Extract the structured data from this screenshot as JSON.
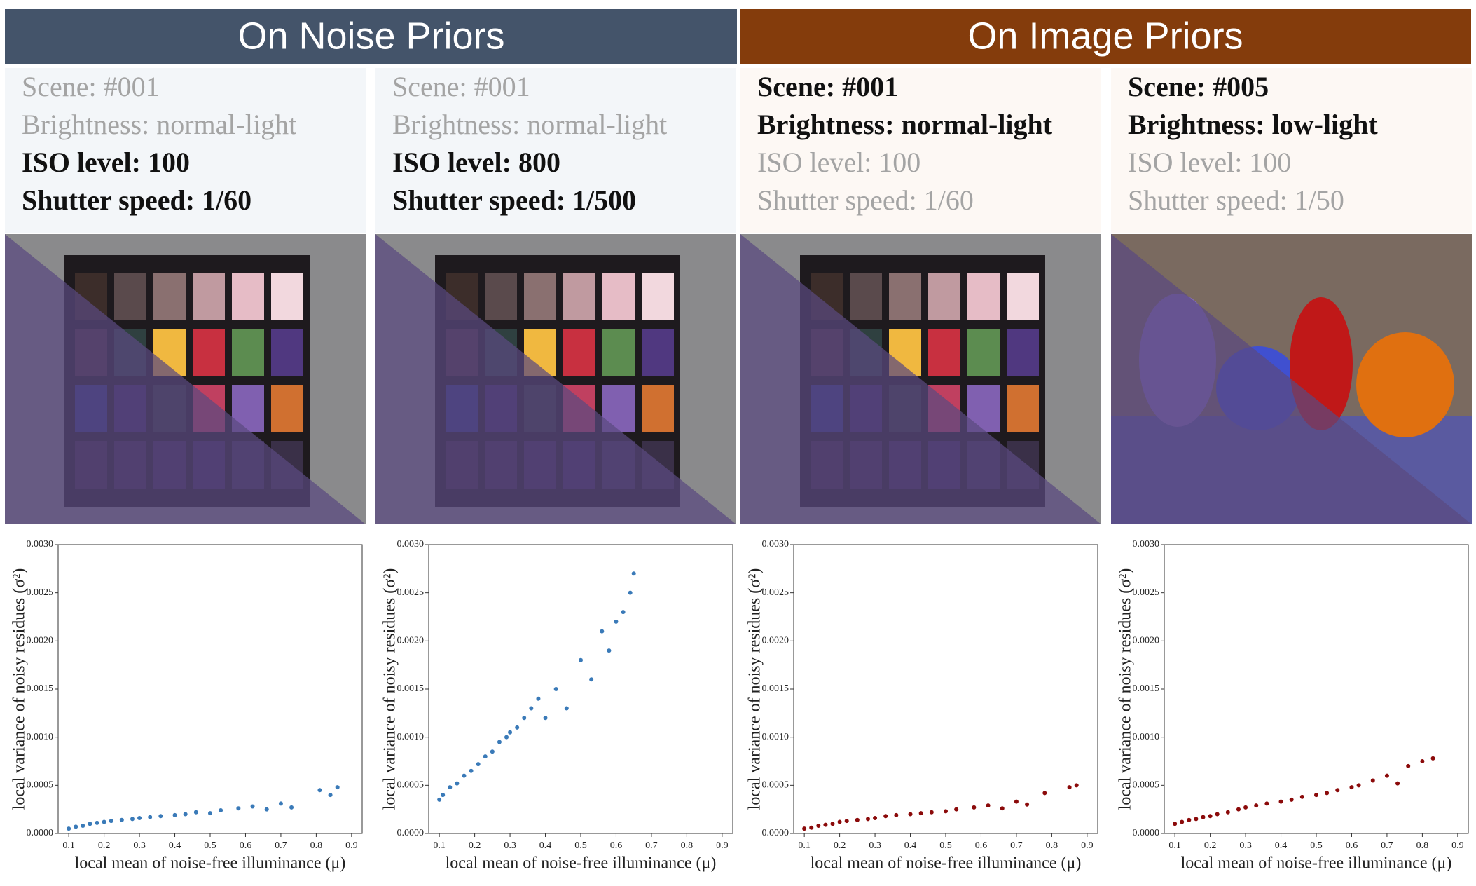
{
  "headers": [
    "On Noise Priors",
    "On Image Priors"
  ],
  "panels": [
    {
      "lines": [
        "Scene: #001",
        "Brightness: normal-light",
        "ISO level: 100",
        "Shutter speed: 1/60"
      ],
      "bold": [
        false,
        false,
        true,
        true
      ]
    },
    {
      "lines": [
        "Scene: #001",
        "Brightness: normal-light",
        "ISO level: 800",
        "Shutter speed: 1/500"
      ],
      "bold": [
        false,
        false,
        true,
        true
      ]
    },
    {
      "lines": [
        "Scene: #001",
        "Brightness: normal-light",
        "ISO level: 100",
        "Shutter speed: 1/60"
      ],
      "bold": [
        true,
        true,
        false,
        false
      ]
    },
    {
      "lines": [
        "Scene: #005",
        "Brightness: low-light",
        "ISO level: 100",
        "Shutter speed: 1/50"
      ],
      "bold": [
        true,
        true,
        false,
        false
      ]
    }
  ],
  "chart_data": [
    {
      "type": "scatter",
      "xlabel": "local mean of noise-free illuminance (μ)",
      "ylabel": "local variance of noisy residues (σ²)",
      "color": "#3a7ab8",
      "x": [
        0.1,
        0.12,
        0.14,
        0.16,
        0.18,
        0.2,
        0.22,
        0.25,
        0.28,
        0.3,
        0.33,
        0.36,
        0.4,
        0.43,
        0.46,
        0.5,
        0.53,
        0.58,
        0.62,
        0.66,
        0.7,
        0.73,
        0.81,
        0.84,
        0.86
      ],
      "values": [
        5e-05,
        7e-05,
        8e-05,
        0.0001,
        0.00011,
        0.00012,
        0.00013,
        0.00014,
        0.00015,
        0.00016,
        0.00017,
        0.00018,
        0.00019,
        0.0002,
        0.00022,
        0.00021,
        0.00024,
        0.00026,
        0.00028,
        0.00025,
        0.00031,
        0.00027,
        0.00045,
        0.0004,
        0.00048
      ],
      "xlim": [
        0.07,
        0.93
      ],
      "xticks": [
        0.1,
        0.2,
        0.3,
        0.4,
        0.5,
        0.6,
        0.7,
        0.8,
        0.9
      ],
      "ylim": [
        0,
        0.003
      ],
      "yticks": [
        {
          "value": 0,
          "label": "0.0000"
        },
        {
          "value": 0.0005,
          "label": "0.0005"
        },
        {
          "value": 0.001,
          "label": "0.0010"
        },
        {
          "value": 0.0015,
          "label": "0.0015"
        },
        {
          "value": 0.002,
          "label": "0.0020"
        },
        {
          "value": 0.0025,
          "label": "0.0025"
        },
        {
          "value": 0.003,
          "label": "0.0030"
        }
      ]
    },
    {
      "type": "scatter",
      "xlabel": "local mean of noise-free illuminance (μ)",
      "ylabel": "local variance of noisy residues (σ²)",
      "color": "#3a7ab8",
      "x": [
        0.1,
        0.11,
        0.13,
        0.15,
        0.17,
        0.19,
        0.21,
        0.23,
        0.25,
        0.27,
        0.29,
        0.3,
        0.32,
        0.34,
        0.36,
        0.38,
        0.4,
        0.43,
        0.46,
        0.5,
        0.53,
        0.56,
        0.58,
        0.6,
        0.62,
        0.64,
        0.65
      ],
      "values": [
        0.00035,
        0.0004,
        0.00048,
        0.00052,
        0.0006,
        0.00065,
        0.00072,
        0.0008,
        0.00085,
        0.00095,
        0.001,
        0.00105,
        0.0011,
        0.0012,
        0.0013,
        0.0014,
        0.0012,
        0.0015,
        0.0013,
        0.0018,
        0.0016,
        0.0021,
        0.0019,
        0.0022,
        0.0023,
        0.0025,
        0.0027
      ],
      "xlim": [
        0.07,
        0.93
      ],
      "xticks": [
        0.1,
        0.2,
        0.3,
        0.4,
        0.5,
        0.6,
        0.7,
        0.8,
        0.9
      ],
      "ylim": [
        0,
        0.003
      ],
      "yticks": [
        {
          "value": 0,
          "label": "0.0000"
        },
        {
          "value": 0.0005,
          "label": "0.0005"
        },
        {
          "value": 0.001,
          "label": "0.0010"
        },
        {
          "value": 0.0015,
          "label": "0.0015"
        },
        {
          "value": 0.002,
          "label": "0.0020"
        },
        {
          "value": 0.0025,
          "label": "0.0025"
        },
        {
          "value": 0.003,
          "label": "0.0030"
        }
      ]
    },
    {
      "type": "scatter",
      "xlabel": "local mean of noise-free illuminance (μ)",
      "ylabel": "local variance of noisy residues (σ²)",
      "color": "#8b0a0a",
      "x": [
        0.1,
        0.12,
        0.14,
        0.16,
        0.18,
        0.2,
        0.22,
        0.25,
        0.28,
        0.3,
        0.33,
        0.36,
        0.4,
        0.43,
        0.46,
        0.5,
        0.53,
        0.58,
        0.62,
        0.66,
        0.7,
        0.73,
        0.78,
        0.85,
        0.87
      ],
      "values": [
        5e-05,
        6e-05,
        8e-05,
        9e-05,
        0.0001,
        0.00012,
        0.00013,
        0.00014,
        0.00015,
        0.00016,
        0.00018,
        0.00019,
        0.0002,
        0.00021,
        0.00022,
        0.00023,
        0.00025,
        0.00027,
        0.00029,
        0.00026,
        0.00033,
        0.0003,
        0.00042,
        0.00048,
        0.0005
      ],
      "xlim": [
        0.07,
        0.93
      ],
      "xticks": [
        0.1,
        0.2,
        0.3,
        0.4,
        0.5,
        0.6,
        0.7,
        0.8,
        0.9
      ],
      "ylim": [
        0,
        0.003
      ],
      "yticks": [
        {
          "value": 0,
          "label": "0.0000"
        },
        {
          "value": 0.0005,
          "label": "0.0005"
        },
        {
          "value": 0.001,
          "label": "0.0010"
        },
        {
          "value": 0.0015,
          "label": "0.0015"
        },
        {
          "value": 0.002,
          "label": "0.0020"
        },
        {
          "value": 0.0025,
          "label": "0.0025"
        },
        {
          "value": 0.003,
          "label": "0.0030"
        }
      ]
    },
    {
      "type": "scatter",
      "xlabel": "local mean of noise-free illuminance (μ)",
      "ylabel": "local variance of noisy residues (σ²)",
      "color": "#8b0a0a",
      "x": [
        0.1,
        0.12,
        0.14,
        0.16,
        0.18,
        0.2,
        0.22,
        0.25,
        0.28,
        0.3,
        0.33,
        0.36,
        0.4,
        0.43,
        0.46,
        0.5,
        0.53,
        0.56,
        0.6,
        0.62,
        0.66,
        0.7,
        0.73,
        0.76,
        0.8,
        0.83
      ],
      "values": [
        0.0001,
        0.00012,
        0.00014,
        0.00015,
        0.00017,
        0.00018,
        0.0002,
        0.00022,
        0.00025,
        0.00027,
        0.00029,
        0.00031,
        0.00033,
        0.00035,
        0.00038,
        0.0004,
        0.00042,
        0.00045,
        0.00048,
        0.0005,
        0.00055,
        0.0006,
        0.00052,
        0.0007,
        0.00075,
        0.00078
      ],
      "xlim": [
        0.07,
        0.93
      ],
      "xticks": [
        0.1,
        0.2,
        0.3,
        0.4,
        0.5,
        0.6,
        0.7,
        0.8,
        0.9
      ],
      "ylim": [
        0,
        0.003
      ],
      "yticks": [
        {
          "value": 0,
          "label": "0.0000"
        },
        {
          "value": 0.0005,
          "label": "0.0005"
        },
        {
          "value": 0.001,
          "label": "0.0010"
        },
        {
          "value": 0.0015,
          "label": "0.0015"
        },
        {
          "value": 0.002,
          "label": "0.0020"
        },
        {
          "value": 0.0025,
          "label": "0.0025"
        },
        {
          "value": 0.003,
          "label": "0.0030"
        }
      ]
    }
  ]
}
